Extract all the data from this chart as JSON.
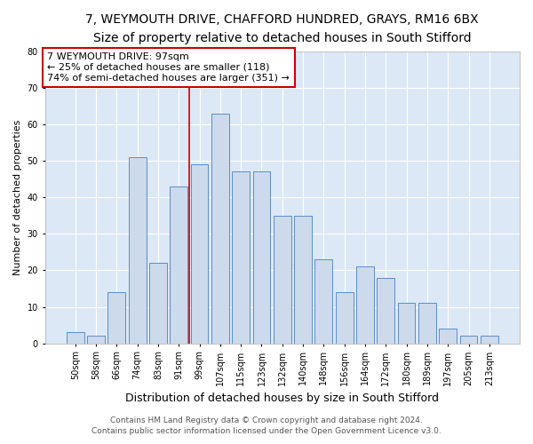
{
  "title1": "7, WEYMOUTH DRIVE, CHAFFORD HUNDRED, GRAYS, RM16 6BX",
  "title2": "Size of property relative to detached houses in South Stifford",
  "xlabel": "Distribution of detached houses by size in South Stifford",
  "ylabel": "Number of detached properties",
  "categories": [
    "50sqm",
    "58sqm",
    "66sqm",
    "74sqm",
    "83sqm",
    "91sqm",
    "99sqm",
    "107sqm",
    "115sqm",
    "123sqm",
    "132sqm",
    "140sqm",
    "148sqm",
    "156sqm",
    "164sqm",
    "172sqm",
    "180sqm",
    "189sqm",
    "197sqm",
    "205sqm",
    "213sqm"
  ],
  "values": [
    3,
    2,
    14,
    51,
    22,
    43,
    49,
    63,
    47,
    47,
    35,
    35,
    23,
    14,
    21,
    18,
    11,
    11,
    4,
    2,
    2
  ],
  "bar_color": "#cddaeb",
  "bar_edge_color": "#5b8dc8",
  "annotation_label": "7 WEYMOUTH DRIVE: 97sqm",
  "annotation_line1": "← 25% of detached houses are smaller (118)",
  "annotation_line2": "74% of semi-detached houses are larger (351) →",
  "ref_line_color": "#cc0000",
  "ref_line_x": 5.5,
  "ylim": [
    0,
    80
  ],
  "yticks": [
    0,
    10,
    20,
    30,
    40,
    50,
    60,
    70,
    80
  ],
  "plot_bg_color": "#dce8f5",
  "footer1": "Contains HM Land Registry data © Crown copyright and database right 2024.",
  "footer2": "Contains public sector information licensed under the Open Government Licence v3.0.",
  "title1_fontsize": 10,
  "title2_fontsize": 9,
  "xlabel_fontsize": 9,
  "ylabel_fontsize": 8,
  "tick_fontsize": 7,
  "annotation_fontsize": 8,
  "footer_fontsize": 6.5
}
